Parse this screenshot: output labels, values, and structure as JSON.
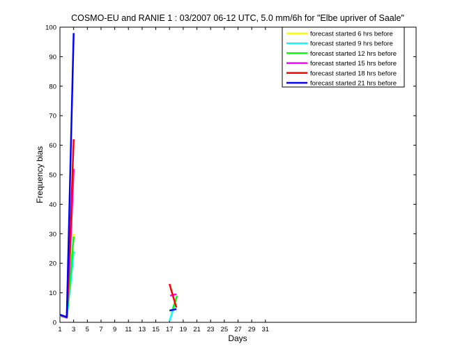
{
  "chart_data": {
    "type": "line",
    "title": "COSMO-EU and RANIE 1 : 03/2007 06-12 UTC, 5.0 mm/6h for \"Elbe upriver of Saale\"",
    "xlabel": "Days",
    "ylabel": "Frequency bias",
    "xlim": [
      1,
      53
    ],
    "ylim": [
      0,
      100
    ],
    "xticks": [
      1,
      3,
      5,
      7,
      9,
      11,
      13,
      15,
      17,
      19,
      21,
      23,
      25,
      27,
      29,
      31
    ],
    "yticks": [
      0,
      10,
      20,
      30,
      40,
      50,
      60,
      70,
      80,
      90,
      100
    ],
    "grid": false,
    "legend_position": "top-right",
    "series": [
      {
        "name": "forecast started 6 hrs before",
        "color": "#ffff00",
        "segments": [
          [
            [
              1,
              2.3
            ],
            [
              1.5,
              2.0
            ],
            [
              2,
              1.7
            ],
            [
              2.5,
              14
            ],
            [
              3,
              30
            ]
          ],
          [
            [
              17.2,
              3
            ],
            [
              17.6,
              5
            ],
            [
              18,
              8
            ]
          ]
        ]
      },
      {
        "name": "forecast started 9 hrs before",
        "color": "#00ffff",
        "segments": [
          [
            [
              1,
              2.1
            ],
            [
              1.5,
              2.0
            ],
            [
              2,
              1.6
            ],
            [
              2.5,
              12
            ],
            [
              3,
              24
            ]
          ],
          [
            [
              17,
              0.5
            ],
            [
              17.5,
              4
            ],
            [
              18,
              8.5
            ]
          ]
        ]
      },
      {
        "name": "forecast started 12 hrs before",
        "color": "#00ff00",
        "segments": [
          [
            [
              1,
              2.2
            ],
            [
              1.5,
              1.9
            ],
            [
              2,
              1.5
            ],
            [
              2.5,
              15
            ],
            [
              3,
              29
            ]
          ],
          [
            [
              17.4,
              4
            ],
            [
              17.8,
              7
            ],
            [
              18.1,
              9
            ]
          ]
        ]
      },
      {
        "name": "forecast started 15 hrs before",
        "color": "#ff00ff",
        "segments": [
          [
            [
              1,
              2.4
            ],
            [
              1.5,
              2.0
            ],
            [
              2,
              1.6
            ],
            [
              2.5,
              24
            ],
            [
              3,
              52
            ]
          ],
          [
            [
              17.1,
              9
            ],
            [
              17.6,
              9.3
            ],
            [
              18,
              9.5
            ]
          ]
        ]
      },
      {
        "name": "forecast started 18 hrs before",
        "color": "#ff0000",
        "segments": [
          [
            [
              1,
              2.5
            ],
            [
              1.5,
              2.1
            ],
            [
              2,
              1.8
            ],
            [
              2.5,
              28
            ],
            [
              3,
              62
            ]
          ],
          [
            [
              17,
              13
            ],
            [
              17.5,
              9
            ],
            [
              18,
              5
            ]
          ]
        ]
      },
      {
        "name": "forecast started 21 hrs before",
        "color": "#0000ff",
        "segments": [
          [
            [
              1,
              2.6
            ],
            [
              1.5,
              2.2
            ],
            [
              2,
              1.8
            ],
            [
              2.5,
              50
            ],
            [
              3,
              98
            ]
          ],
          [
            [
              17,
              4
            ],
            [
              17.5,
              4.2
            ],
            [
              18,
              4.5
            ]
          ]
        ]
      }
    ]
  }
}
